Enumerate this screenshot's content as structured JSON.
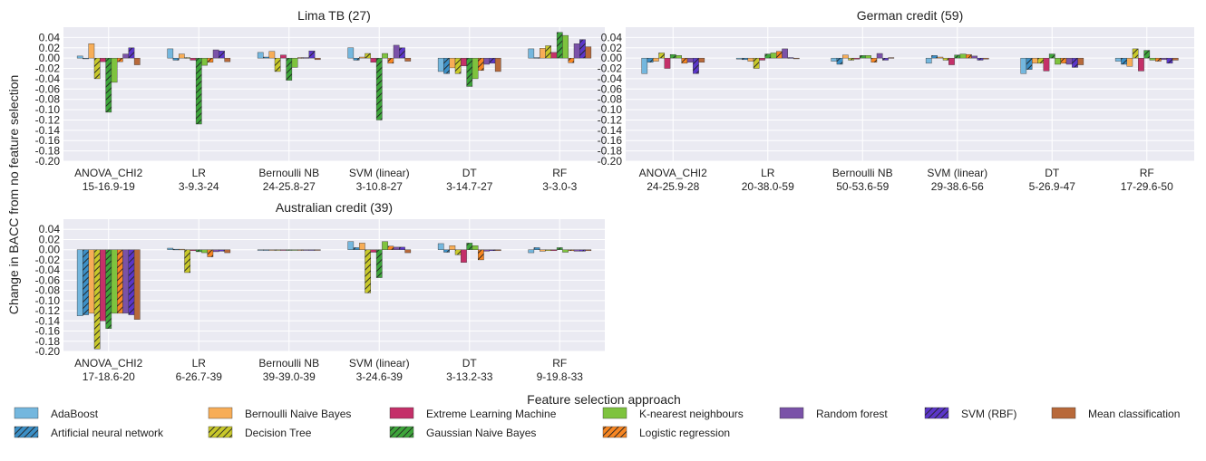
{
  "figure": {
    "ylabel": "Change in BACC from no feature selection",
    "xlabel": "Feature selection approach"
  },
  "legend": [
    {
      "name": "AdaBoost",
      "color": "#74b7de",
      "hatch": false
    },
    {
      "name": "Artificial neural network",
      "color": "#3b8fc6",
      "hatch": true
    },
    {
      "name": "Bernoulli Naive Bayes",
      "color": "#f7ad57",
      "hatch": false
    },
    {
      "name": "Decision Tree",
      "color": "#c8c82a",
      "hatch": true
    },
    {
      "name": "Extreme Learning Machine",
      "color": "#c43069",
      "hatch": false
    },
    {
      "name": "Gaussian Naive Bayes",
      "color": "#3da53a",
      "hatch": true
    },
    {
      "name": "K-nearest neighbours",
      "color": "#7ec33e",
      "hatch": false
    },
    {
      "name": "Logistic regression",
      "color": "#f78622",
      "hatch": true
    },
    {
      "name": "Random forest",
      "color": "#7a52a8",
      "hatch": false
    },
    {
      "name": "SVM (RBF)",
      "color": "#5b36c9",
      "hatch": true
    },
    {
      "name": "Mean classification",
      "color": "#b8693a",
      "hatch": false
    }
  ],
  "chart_data": [
    {
      "type": "bar",
      "title": "Lima TB (27)",
      "ylim": [
        -0.2,
        0.06
      ],
      "yticks": [
        "0.04",
        "0.02",
        "0.00",
        "-0.02",
        "-0.04",
        "-0.06",
        "-0.08",
        "-0.10",
        "-0.12",
        "-0.14",
        "-0.16",
        "-0.18",
        "-0.20"
      ],
      "categories": [
        {
          "name": "ANOVA_CHI2",
          "sub": "15-16.9-19"
        },
        {
          "name": "LR",
          "sub": "3-9.3-24"
        },
        {
          "name": "Bernoulli NB",
          "sub": "24-25.8-27"
        },
        {
          "name": "SVM (linear)",
          "sub": "3-10.8-27"
        },
        {
          "name": "DT",
          "sub": "3-14.7-27"
        },
        {
          "name": "RF",
          "sub": "3-3.0-3"
        }
      ],
      "values": [
        [
          0.004,
          -0.001,
          0.028,
          -0.04,
          -0.007,
          -0.105,
          -0.047,
          -0.007,
          0.008,
          0.02,
          -0.013
        ],
        [
          0.018,
          -0.004,
          0.008,
          0.001,
          -0.004,
          -0.128,
          -0.014,
          -0.008,
          0.016,
          0.014,
          -0.007
        ],
        [
          0.011,
          0.002,
          0.013,
          -0.026,
          0.006,
          -0.043,
          -0.018,
          0.001,
          0.001,
          0.014,
          -0.003
        ],
        [
          0.02,
          -0.004,
          0.002,
          0.009,
          -0.008,
          -0.12,
          0.009,
          -0.01,
          0.025,
          0.02,
          -0.006
        ],
        [
          -0.026,
          -0.03,
          -0.019,
          -0.03,
          -0.015,
          -0.055,
          -0.04,
          -0.024,
          -0.012,
          -0.01,
          -0.026
        ],
        [
          0.018,
          0.001,
          0.019,
          0.024,
          0.011,
          0.05,
          0.044,
          -0.009,
          0.028,
          0.036,
          0.022
        ]
      ]
    },
    {
      "type": "bar",
      "title": "German credit (59)",
      "ylim": [
        -0.2,
        0.06
      ],
      "yticks": [
        "0.04",
        "0.02",
        "0.00",
        "-0.02",
        "-0.04",
        "-0.06",
        "-0.08",
        "-0.10",
        "-0.12",
        "-0.14",
        "-0.16",
        "-0.18",
        "-0.20"
      ],
      "categories": [
        {
          "name": "ANOVA_CHI2",
          "sub": "24-25.9-28"
        },
        {
          "name": "LR",
          "sub": "20-38.0-59"
        },
        {
          "name": "Bernoulli NB",
          "sub": "50-53.6-59"
        },
        {
          "name": "SVM (linear)",
          "sub": "29-38.6-56"
        },
        {
          "name": "DT",
          "sub": "5-26.9-47"
        },
        {
          "name": "RF",
          "sub": "17-29.6-50"
        }
      ],
      "values": [
        [
          -0.03,
          -0.008,
          -0.006,
          0.01,
          -0.02,
          0.007,
          0.005,
          -0.01,
          -0.008,
          -0.03,
          -0.008
        ],
        [
          -0.002,
          -0.003,
          -0.006,
          -0.02,
          -0.004,
          0.008,
          0.01,
          0.013,
          0.018,
          0.001,
          -0.001
        ],
        [
          -0.006,
          -0.012,
          0.006,
          -0.004,
          -0.002,
          0.005,
          0.005,
          -0.008,
          0.009,
          -0.004,
          0.001
        ],
        [
          -0.01,
          0.005,
          0.002,
          -0.004,
          -0.013,
          0.006,
          0.008,
          0.007,
          0.004,
          -0.004,
          -0.002
        ],
        [
          -0.03,
          -0.022,
          -0.01,
          -0.01,
          -0.025,
          0.008,
          -0.012,
          -0.01,
          -0.012,
          -0.018,
          -0.013
        ],
        [
          -0.006,
          -0.012,
          -0.016,
          0.018,
          -0.025,
          0.015,
          -0.004,
          -0.006,
          -0.003,
          -0.01,
          -0.004
        ]
      ]
    },
    {
      "type": "bar",
      "title": "Australian credit (39)",
      "ylim": [
        -0.2,
        0.06
      ],
      "yticks": [
        "0.04",
        "0.02",
        "0.00",
        "-0.02",
        "-0.04",
        "-0.06",
        "-0.08",
        "-0.10",
        "-0.12",
        "-0.14",
        "-0.16",
        "-0.18",
        "-0.20"
      ],
      "categories": [
        {
          "name": "ANOVA_CHI2",
          "sub": "17-18.6-20"
        },
        {
          "name": "LR",
          "sub": "6-26.7-39"
        },
        {
          "name": "Bernoulli NB",
          "sub": "39-39.0-39"
        },
        {
          "name": "SVM (linear)",
          "sub": "3-24.6-39"
        },
        {
          "name": "DT",
          "sub": "3-13.2-33"
        },
        {
          "name": "RF",
          "sub": "9-19.8-33"
        }
      ],
      "values": [
        [
          -0.13,
          -0.128,
          -0.125,
          -0.195,
          -0.14,
          -0.155,
          -0.125,
          -0.125,
          -0.125,
          -0.128,
          -0.137
        ],
        [
          0.003,
          0.001,
          0.001,
          -0.045,
          -0.002,
          -0.004,
          -0.006,
          -0.014,
          -0.004,
          -0.003,
          -0.006
        ],
        [
          0.0,
          0.0,
          0.0,
          0.0,
          0.0,
          0.0,
          0.0,
          0.0,
          0.0,
          0.0,
          0.0
        ],
        [
          0.016,
          0.004,
          0.013,
          -0.085,
          -0.005,
          -0.055,
          0.016,
          0.007,
          0.005,
          0.005,
          -0.006
        ],
        [
          0.012,
          -0.005,
          0.008,
          -0.01,
          -0.025,
          0.013,
          0.008,
          -0.02,
          -0.003,
          -0.002,
          -0.002
        ],
        [
          -0.006,
          0.004,
          -0.003,
          -0.002,
          -0.002,
          0.004,
          -0.005,
          -0.002,
          -0.003,
          -0.003,
          -0.002
        ]
      ]
    }
  ]
}
